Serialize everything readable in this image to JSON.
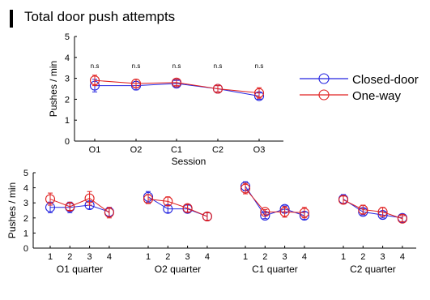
{
  "title": "Total door push attempts",
  "colors": {
    "closed": "#2424e0",
    "oneway": "#e02020",
    "axis": "#000000"
  },
  "legend": {
    "items": [
      "Closed-door",
      "One-way"
    ]
  },
  "chart_data": [
    {
      "type": "line",
      "title": "Total door push attempts",
      "xlabel": "Session",
      "ylabel": "Pushes / min",
      "ylim": [
        0,
        5
      ],
      "yticks": [
        "0",
        "1",
        "2",
        "3",
        "4",
        "5"
      ],
      "categories": [
        "O1",
        "O2",
        "C1",
        "C2",
        "O3"
      ],
      "annotations": [
        "n.s",
        "n.s",
        "n.s",
        "n.s",
        "n.s"
      ],
      "legend_position": "right",
      "series": [
        {
          "name": "Closed-door",
          "color": "#2424e0",
          "values": [
            2.65,
            2.65,
            2.75,
            2.5,
            2.15
          ],
          "errors": [
            0.3,
            0.2,
            0.15,
            0.15,
            0.15
          ]
        },
        {
          "name": "One-way",
          "color": "#e02020",
          "values": [
            2.9,
            2.75,
            2.8,
            2.5,
            2.3
          ],
          "errors": [
            0.25,
            0.2,
            0.15,
            0.15,
            0.25
          ]
        }
      ]
    },
    {
      "type": "line",
      "ylabel": "Pushes / min",
      "ylim": [
        0,
        5
      ],
      "yticks": [
        "0",
        "1",
        "2",
        "3",
        "4",
        "5"
      ],
      "groups": [
        {
          "label": "O1 quarter",
          "ticks": [
            "1",
            "2",
            "3",
            "4"
          ],
          "series": [
            {
              "name": "Closed-door",
              "values": [
                2.7,
                2.7,
                2.85,
                2.4
              ],
              "errors": [
                0.35,
                0.35,
                0.25,
                0.3
              ]
            },
            {
              "name": "One-way",
              "values": [
                3.25,
                2.75,
                3.3,
                2.35
              ],
              "errors": [
                0.4,
                0.25,
                0.45,
                0.35
              ]
            }
          ]
        },
        {
          "label": "O2 quarter",
          "ticks": [
            "1",
            "2",
            "3",
            "4"
          ],
          "series": [
            {
              "name": "Closed-door",
              "values": [
                3.4,
                2.6,
                2.6,
                2.1
              ],
              "errors": [
                0.35,
                0.25,
                0.25,
                0.25
              ]
            },
            {
              "name": "One-way",
              "values": [
                3.25,
                3.1,
                2.65,
                2.1
              ],
              "errors": [
                0.3,
                0.3,
                0.25,
                0.25
              ]
            }
          ]
        },
        {
          "label": "C1 quarter",
          "ticks": [
            "1",
            "2",
            "3",
            "4"
          ],
          "series": [
            {
              "name": "Closed-door",
              "values": [
                4.1,
                2.15,
                2.6,
                2.15
              ],
              "errors": [
                0.3,
                0.2,
                0.2,
                0.25
              ]
            },
            {
              "name": "One-way",
              "values": [
                3.95,
                2.4,
                2.4,
                2.35
              ],
              "errors": [
                0.35,
                0.15,
                0.35,
                0.35
              ]
            }
          ]
        },
        {
          "label": "C2 quarter",
          "ticks": [
            "1",
            "2",
            "3",
            "4"
          ],
          "series": [
            {
              "name": "Closed-door",
              "values": [
                3.25,
                2.4,
                2.2,
                2.0
              ],
              "errors": [
                0.3,
                0.2,
                0.2,
                0.25
              ]
            },
            {
              "name": "One-way",
              "values": [
                3.2,
                2.55,
                2.4,
                1.95
              ],
              "errors": [
                0.25,
                0.3,
                0.3,
                0.2
              ]
            }
          ]
        }
      ]
    }
  ]
}
